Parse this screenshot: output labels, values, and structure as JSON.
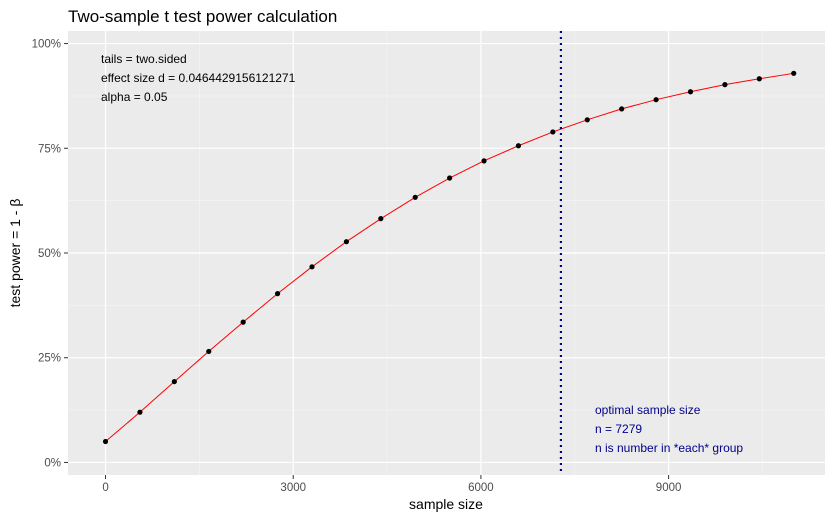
{
  "chart_data": {
    "type": "line",
    "title": "Two-sample t test power calculation",
    "xlabel": "sample size",
    "ylabel": "test power = 1 - β",
    "xlim": [
      -600,
      11500
    ],
    "ylim": [
      -0.03,
      1.03
    ],
    "x_ticks": [
      0,
      3000,
      6000,
      9000
    ],
    "x_tick_labels": [
      "0",
      "3000",
      "6000",
      "9000"
    ],
    "x_minor_ticks": [
      1500,
      4500,
      7500,
      10500
    ],
    "y_ticks": [
      0,
      0.25,
      0.5,
      0.75,
      1.0
    ],
    "y_tick_labels": [
      "0%",
      "25%",
      "50%",
      "75%",
      "100%"
    ],
    "y_minor_ticks": [
      0.125,
      0.375,
      0.625,
      0.875
    ],
    "grid": true,
    "background": "#ebebeb",
    "line_color": "#ff0000",
    "point_color": "#000000",
    "vline": {
      "x": 7279,
      "color": "#00008b",
      "style": "dotted"
    },
    "points": [
      {
        "x": 0,
        "y": 0.05
      },
      {
        "x": 550,
        "y": 0.12
      },
      {
        "x": 1100,
        "y": 0.193
      },
      {
        "x": 1650,
        "y": 0.265
      },
      {
        "x": 2200,
        "y": 0.335
      },
      {
        "x": 2750,
        "y": 0.403
      },
      {
        "x": 3300,
        "y": 0.467
      },
      {
        "x": 3850,
        "y": 0.527
      },
      {
        "x": 4400,
        "y": 0.582
      },
      {
        "x": 4950,
        "y": 0.633
      },
      {
        "x": 5500,
        "y": 0.679
      },
      {
        "x": 6050,
        "y": 0.72
      },
      {
        "x": 6600,
        "y": 0.756
      },
      {
        "x": 7150,
        "y": 0.789
      },
      {
        "x": 7700,
        "y": 0.818
      },
      {
        "x": 8250,
        "y": 0.844
      },
      {
        "x": 8800,
        "y": 0.866
      },
      {
        "x": 9350,
        "y": 0.885
      },
      {
        "x": 9900,
        "y": 0.902
      },
      {
        "x": 10450,
        "y": 0.916
      },
      {
        "x": 11000,
        "y": 0.929
      }
    ],
    "annotations": {
      "params": [
        "tails = two.sided",
        "effect size d = 0.0464429156121271",
        "alpha = 0.05"
      ],
      "optimal": {
        "color": "#00008b",
        "lines": [
          "optimal sample size",
          "n = 7279",
          "n is number in *each* group"
        ]
      }
    }
  }
}
